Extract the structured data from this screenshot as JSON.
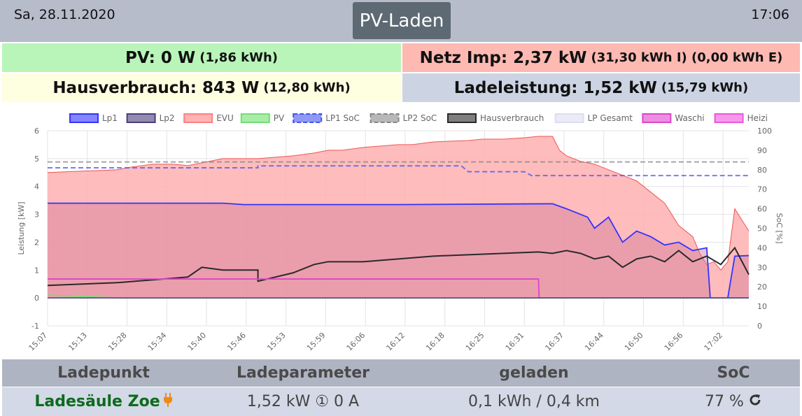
{
  "header": {
    "date": "Sa, 28.11.2020",
    "title": "PV-Laden",
    "time": "17:06"
  },
  "stats": {
    "pv": {
      "label": "PV: 0 W",
      "sub": "(1,86 kWh)"
    },
    "netz": {
      "label": "Netz Imp: 2,37 kW",
      "sub": "(31,30 kWh I) (0,00 kWh E)"
    },
    "haus": {
      "label": "Hausverbrauch: 843 W",
      "sub": "(12,80 kWh)"
    },
    "lade": {
      "label": "Ladeleistung: 1,52 kW",
      "sub": "(15,79 kWh)"
    }
  },
  "chart_data": {
    "type": "line",
    "ylabel": "Leistung [kW]",
    "y2label": "SoC [%]",
    "ylim": [
      -1,
      6
    ],
    "y2lim": [
      0,
      100
    ],
    "yticks": [
      "-1",
      "0",
      "1",
      "2",
      "3",
      "4",
      "5",
      "6"
    ],
    "y2ticks": [
      "0",
      "10",
      "20",
      "30",
      "40",
      "50",
      "60",
      "70",
      "80",
      "90",
      "100"
    ],
    "xticks": [
      "15:07",
      "15:13",
      "15:28",
      "15:34",
      "15:40",
      "15:46",
      "15:53",
      "15:59",
      "16:06",
      "16:12",
      "16:18",
      "16:25",
      "16:31",
      "16:37",
      "16:44",
      "16:50",
      "16:56",
      "17:02"
    ],
    "legend": [
      {
        "name": "Lp1",
        "color": "#3333ff",
        "dash": false
      },
      {
        "name": "Lp2",
        "color": "#4b3d7a",
        "dash": false
      },
      {
        "name": "EVU",
        "color": "#ff8080",
        "dash": false
      },
      {
        "name": "PV",
        "color": "#70e070",
        "dash": false
      },
      {
        "name": "LP1 SoC",
        "color": "#4455ee",
        "dash": true
      },
      {
        "name": "LP2 SoC",
        "color": "#888888",
        "dash": true
      },
      {
        "name": "Hausverbrauch",
        "color": "#2a2a2a",
        "dash": false
      },
      {
        "name": "LP Gesamt",
        "color": "#ddddf2",
        "dash": false
      },
      {
        "name": "Waschi",
        "color": "#dd44cc",
        "dash": false
      },
      {
        "name": "Heizi",
        "color": "#ee55dd",
        "dash": false
      }
    ],
    "series": [
      {
        "name": "EVU",
        "x": [
          0,
          0.05,
          0.1,
          0.12,
          0.15,
          0.18,
          0.2,
          0.22,
          0.25,
          0.3,
          0.35,
          0.38,
          0.4,
          0.42,
          0.45,
          0.5,
          0.52,
          0.55,
          0.6,
          0.62,
          0.65,
          0.68,
          0.7,
          0.72,
          0.73,
          0.74,
          0.76,
          0.78,
          0.8,
          0.82,
          0.84,
          0.86,
          0.88,
          0.9,
          0.92,
          0.93,
          0.94,
          0.95,
          0.96,
          0.97,
          0.98,
          1
        ],
        "y": [
          4.5,
          4.55,
          4.6,
          4.7,
          4.8,
          4.8,
          4.75,
          4.85,
          5.0,
          5.0,
          5.1,
          5.2,
          5.3,
          5.3,
          5.4,
          5.5,
          5.5,
          5.6,
          5.65,
          5.7,
          5.7,
          5.75,
          5.8,
          5.8,
          5.3,
          5.1,
          4.9,
          4.8,
          4.6,
          4.4,
          4.2,
          3.8,
          3.4,
          2.6,
          2.2,
          1.6,
          1.2,
          1.3,
          1.0,
          1.3,
          3.2,
          2.4
        ]
      },
      {
        "name": "Lp1",
        "x": [
          0,
          0.25,
          0.28,
          0.5,
          0.72,
          0.74,
          0.76,
          0.77,
          0.78,
          0.8,
          0.82,
          0.84,
          0.86,
          0.88,
          0.9,
          0.92,
          0.94,
          0.945,
          0.97,
          0.98,
          1
        ],
        "y": [
          3.4,
          3.4,
          3.35,
          3.35,
          3.38,
          3.2,
          3.0,
          2.9,
          2.5,
          2.9,
          2.0,
          2.4,
          2.2,
          1.9,
          2.0,
          1.7,
          1.8,
          0.0,
          0.0,
          1.5,
          1.52
        ]
      },
      {
        "name": "Hausverbrauch",
        "x": [
          0,
          0.05,
          0.1,
          0.15,
          0.2,
          0.22,
          0.25,
          0.3,
          0.3,
          0.35,
          0.38,
          0.4,
          0.45,
          0.5,
          0.55,
          0.6,
          0.65,
          0.7,
          0.72,
          0.74,
          0.76,
          0.78,
          0.8,
          0.82,
          0.84,
          0.86,
          0.88,
          0.9,
          0.92,
          0.94,
          0.96,
          0.98,
          1
        ],
        "y": [
          0.45,
          0.5,
          0.55,
          0.65,
          0.75,
          1.1,
          1.0,
          1.0,
          0.6,
          0.9,
          1.2,
          1.3,
          1.3,
          1.4,
          1.5,
          1.55,
          1.6,
          1.65,
          1.6,
          1.7,
          1.6,
          1.4,
          1.5,
          1.1,
          1.4,
          1.5,
          1.3,
          1.7,
          1.3,
          1.5,
          1.2,
          1.8,
          0.84
        ]
      },
      {
        "name": "Waschi",
        "x": [
          0,
          0.2,
          0.4,
          0.6,
          0.7,
          0.701,
          1
        ],
        "y": [
          0.68,
          0.68,
          0.68,
          0.68,
          0.68,
          0.0,
          0.0
        ]
      },
      {
        "name": "PV",
        "x": [
          0,
          0.05,
          0.1,
          1
        ],
        "y": [
          0.1,
          0.05,
          0.0,
          0.0
        ]
      }
    ],
    "soc": [
      {
        "name": "LP1 SoC",
        "x": [
          0,
          0.3,
          0.3,
          0.59,
          0.6,
          0.68,
          0.69,
          1
        ],
        "y": [
          81,
          81,
          82,
          82,
          79,
          79,
          77,
          77
        ]
      },
      {
        "name": "LP2 SoC",
        "x": [
          0,
          1
        ],
        "y": [
          84,
          84
        ]
      }
    ]
  },
  "table": {
    "headers": [
      "Ladepunkt",
      "Ladeparameter",
      "geladen",
      "SoC"
    ],
    "row": {
      "name": "Ladesäule Zoe",
      "params": "1,52 kW ① 0 A",
      "charged": "0,1 kWh / 0,4 km",
      "soc": "77 %"
    }
  }
}
